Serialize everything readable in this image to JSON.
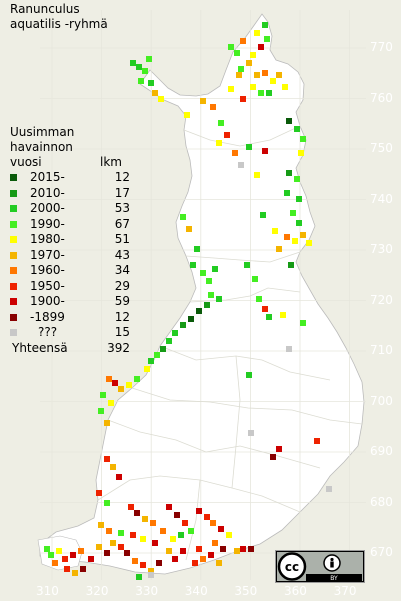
{
  "title": [
    "Ranunculus",
    "aquatilis -ryhmä"
  ],
  "legend": {
    "header": [
      "Uusimman",
      "havainnon",
      "vuosi"
    ],
    "count_header": "lkm",
    "items": [
      {
        "label": "2015-",
        "count": "12",
        "color": "#0a5a0a"
      },
      {
        "label": "2010-",
        "count": "17",
        "color": "#169a16"
      },
      {
        "label": "2000-",
        "count": "53",
        "color": "#22cc22"
      },
      {
        "label": "1990-",
        "count": "67",
        "color": "#44ee22"
      },
      {
        "label": "1980-",
        "count": "51",
        "color": "#ffff00"
      },
      {
        "label": "1970-",
        "count": "43",
        "color": "#f4b400"
      },
      {
        "label": "1960-",
        "count": "34",
        "color": "#ff7700"
      },
      {
        "label": "1950-",
        "count": "29",
        "color": "#ee2200"
      },
      {
        "label": "1900-",
        "count": "59",
        "color": "#cc0000"
      },
      {
        "label": "-1899",
        "count": "12",
        "color": "#880000"
      },
      {
        "label": "???",
        "count": "15",
        "color": "#c8c8c8"
      }
    ],
    "total_label": "Yhteensä",
    "total": "392"
  },
  "grid_y_labels": [
    "770",
    "760",
    "750",
    "740",
    "730",
    "720",
    "710",
    "700",
    "690",
    "680",
    "670"
  ],
  "grid_x_labels": [
    "310",
    "320",
    "330",
    "340",
    "350",
    "360",
    "370"
  ],
  "license": {
    "cc": "cc",
    "by": "BY"
  }
}
